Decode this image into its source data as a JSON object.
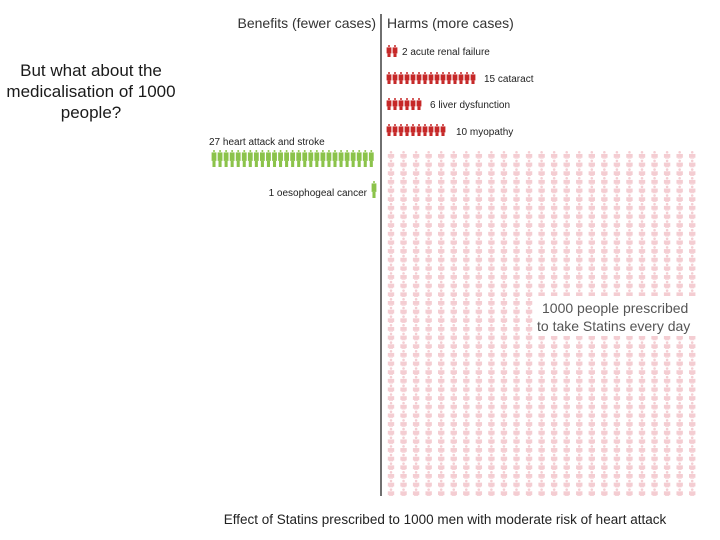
{
  "slide": {
    "title": "But what about the medicalisation of 1000 people?"
  },
  "chart_data": {
    "type": "icon-array",
    "header_benefits": "Benefits (fewer cases)",
    "header_harms": "Harms (more cases)",
    "benefits": [
      {
        "count": 27,
        "label": "27 heart attack and stroke"
      },
      {
        "count": 1,
        "label": "1 oesophogeal cancer"
      }
    ],
    "harms": [
      {
        "count": 2,
        "label": "2 acute renal failure"
      },
      {
        "count": 15,
        "label": "15 cataract"
      },
      {
        "count": 6,
        "label": "6 liver dysfunction"
      },
      {
        "count": 10,
        "label": "10 myopathy"
      }
    ],
    "population": {
      "count": 1000,
      "label_line1": "1000 people prescribed",
      "label_line2": "to take Statins every day"
    },
    "caption": "Effect of Statins prescribed to 1000 men with moderate risk of heart attack",
    "colors": {
      "benefit": "#8bc34a",
      "harm": "#c62828",
      "population": "#f4cdd2",
      "divider": "#222222"
    }
  }
}
